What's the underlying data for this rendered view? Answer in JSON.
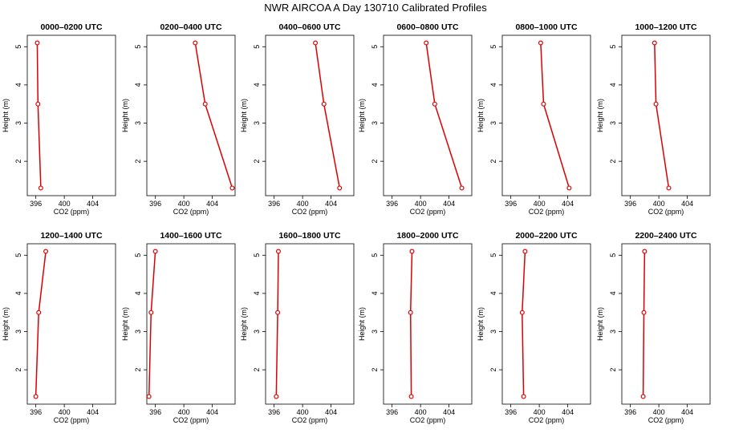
{
  "title": "NWR AIRCOA A  Day 130710  Calibrated Profiles",
  "chart_data": [
    {
      "type": "line",
      "title": "0000–0200 UTC",
      "xlabel": "CO2 (ppm)",
      "ylabel": "Height (m)",
      "xlim": [
        394.8,
        407.2
      ],
      "ylim": [
        1.1,
        5.3
      ],
      "xticks": [
        396,
        400,
        404
      ],
      "yticks": [
        2,
        3,
        4,
        5
      ],
      "x": [
        396.2,
        396.3,
        396.7
      ],
      "y": [
        5.1,
        3.5,
        1.3
      ],
      "color": "#dd0000"
    },
    {
      "type": "line",
      "title": "0200–0400 UTC",
      "xlabel": "CO2 (ppm)",
      "ylabel": "Height (m)",
      "xlim": [
        394.8,
        407.2
      ],
      "ylim": [
        1.1,
        5.3
      ],
      "xticks": [
        396,
        400,
        404
      ],
      "yticks": [
        2,
        3,
        4,
        5
      ],
      "x": [
        401.6,
        403.0,
        406.8
      ],
      "y": [
        5.1,
        3.5,
        1.3
      ],
      "color": "#dd0000"
    },
    {
      "type": "line",
      "title": "0400–0600 UTC",
      "xlabel": "CO2 (ppm)",
      "ylabel": "Height (m)",
      "xlim": [
        394.8,
        407.2
      ],
      "ylim": [
        1.1,
        5.3
      ],
      "xticks": [
        396,
        400,
        404
      ],
      "yticks": [
        2,
        3,
        4,
        5
      ],
      "x": [
        401.8,
        403.0,
        405.2
      ],
      "y": [
        5.1,
        3.5,
        1.3
      ],
      "color": "#dd0000"
    },
    {
      "type": "line",
      "title": "0600–0800 UTC",
      "xlabel": "CO2 (ppm)",
      "ylabel": "Height (m)",
      "xlim": [
        394.8,
        407.2
      ],
      "ylim": [
        1.1,
        5.3
      ],
      "xticks": [
        396,
        400,
        404
      ],
      "yticks": [
        2,
        3,
        4,
        5
      ],
      "x": [
        400.8,
        402.0,
        405.8
      ],
      "y": [
        5.1,
        3.5,
        1.3
      ],
      "color": "#dd0000"
    },
    {
      "type": "line",
      "title": "0800–1000 UTC",
      "xlabel": "CO2 (ppm)",
      "ylabel": "Height (m)",
      "xlim": [
        394.8,
        407.2
      ],
      "ylim": [
        1.1,
        5.3
      ],
      "xticks": [
        396,
        400,
        404
      ],
      "yticks": [
        2,
        3,
        4,
        5
      ],
      "x": [
        400.2,
        400.6,
        404.2
      ],
      "y": [
        5.1,
        3.5,
        1.3
      ],
      "color": "#dd0000"
    },
    {
      "type": "line",
      "title": "1000–1200 UTC",
      "xlabel": "CO2 (ppm)",
      "ylabel": "Height (m)",
      "xlim": [
        394.8,
        407.2
      ],
      "ylim": [
        1.1,
        5.3
      ],
      "xticks": [
        396,
        400,
        404
      ],
      "yticks": [
        2,
        3,
        4,
        5
      ],
      "x": [
        399.4,
        399.6,
        401.4
      ],
      "y": [
        5.1,
        3.5,
        1.3
      ],
      "color": "#dd0000"
    },
    {
      "type": "line",
      "title": "1200–1400 UTC",
      "xlabel": "CO2 (ppm)",
      "ylabel": "Height (m)",
      "xlim": [
        394.8,
        407.2
      ],
      "ylim": [
        1.1,
        5.3
      ],
      "xticks": [
        396,
        400,
        404
      ],
      "yticks": [
        2,
        3,
        4,
        5
      ],
      "x": [
        397.4,
        396.4,
        396.0
      ],
      "y": [
        5.1,
        3.5,
        1.3
      ],
      "color": "#dd0000"
    },
    {
      "type": "line",
      "title": "1400–1600 UTC",
      "xlabel": "CO2 (ppm)",
      "ylabel": "Height (m)",
      "xlim": [
        394.8,
        407.2
      ],
      "ylim": [
        1.1,
        5.3
      ],
      "xticks": [
        396,
        400,
        404
      ],
      "yticks": [
        2,
        3,
        4,
        5
      ],
      "x": [
        396.0,
        395.4,
        395.1
      ],
      "y": [
        5.1,
        3.5,
        1.3
      ],
      "color": "#dd0000"
    },
    {
      "type": "line",
      "title": "1600–1800 UTC",
      "xlabel": "CO2 (ppm)",
      "ylabel": "Height (m)",
      "xlim": [
        394.8,
        407.2
      ],
      "ylim": [
        1.1,
        5.3
      ],
      "xticks": [
        396,
        400,
        404
      ],
      "yticks": [
        2,
        3,
        4,
        5
      ],
      "x": [
        396.6,
        396.5,
        396.3
      ],
      "y": [
        5.1,
        3.5,
        1.3
      ],
      "color": "#dd0000"
    },
    {
      "type": "line",
      "title": "1800–2000 UTC",
      "xlabel": "CO2 (ppm)",
      "ylabel": "Height (m)",
      "xlim": [
        394.8,
        407.2
      ],
      "ylim": [
        1.1,
        5.3
      ],
      "xticks": [
        396,
        400,
        404
      ],
      "yticks": [
        2,
        3,
        4,
        5
      ],
      "x": [
        398.8,
        398.6,
        398.7
      ],
      "y": [
        5.1,
        3.5,
        1.3
      ],
      "color": "#dd0000"
    },
    {
      "type": "line",
      "title": "2000–2200 UTC",
      "xlabel": "CO2 (ppm)",
      "ylabel": "Height (m)",
      "xlim": [
        394.8,
        407.2
      ],
      "ylim": [
        1.1,
        5.3
      ],
      "xticks": [
        396,
        400,
        404
      ],
      "yticks": [
        2,
        3,
        4,
        5
      ],
      "x": [
        398.0,
        397.6,
        397.8
      ],
      "y": [
        5.1,
        3.5,
        1.3
      ],
      "color": "#dd0000"
    },
    {
      "type": "line",
      "title": "2200–2400 UTC",
      "xlabel": "CO2 (ppm)",
      "ylabel": "Height (m)",
      "xlim": [
        394.8,
        407.2
      ],
      "ylim": [
        1.1,
        5.3
      ],
      "xticks": [
        396,
        400,
        404
      ],
      "yticks": [
        2,
        3,
        4,
        5
      ],
      "x": [
        398.0,
        397.9,
        397.8
      ],
      "y": [
        5.1,
        3.5,
        1.3
      ],
      "color": "#dd0000"
    }
  ]
}
